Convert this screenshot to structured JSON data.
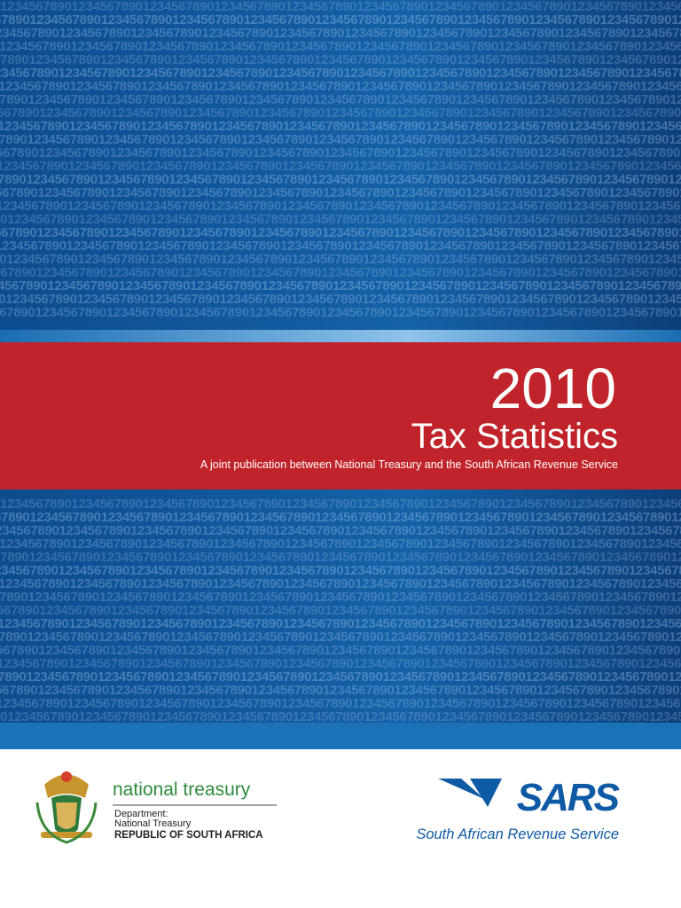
{
  "background_pattern": "1234567890",
  "header": {
    "year": "2010",
    "title": "Tax Statistics",
    "subtitle": "A joint publication between National Treasury and the South African Revenue Service"
  },
  "logos": {
    "treasury": {
      "name": "national treasury",
      "line1": "Department:",
      "line2": "National Treasury",
      "line3": "REPUBLIC OF SOUTH AFRICA"
    },
    "sars": {
      "name": "SARS",
      "tagline": "South African Revenue Service"
    }
  }
}
